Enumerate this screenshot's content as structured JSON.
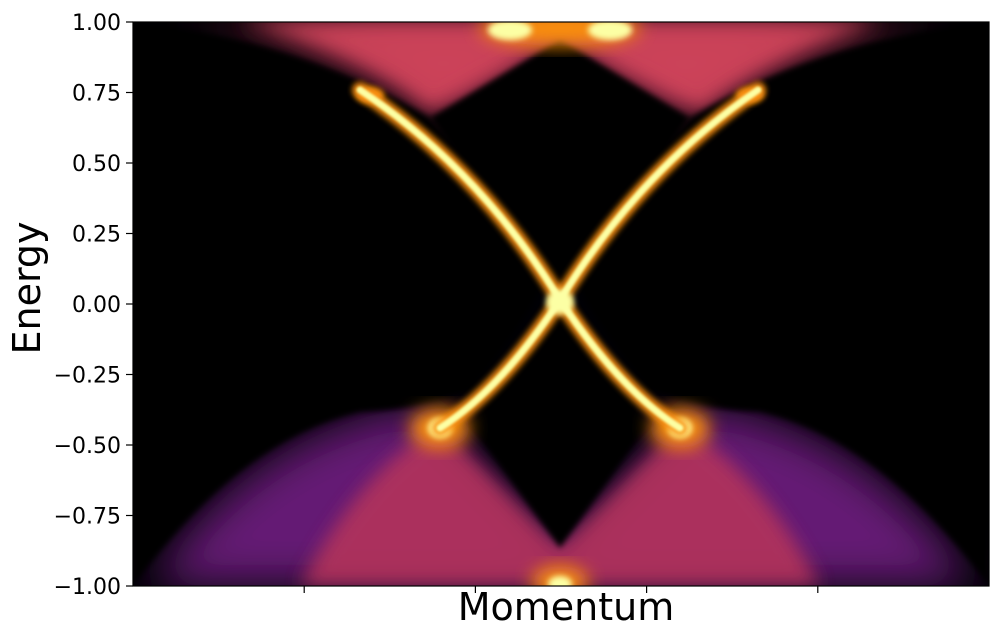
{
  "chart_data": {
    "type": "heatmap",
    "title": "",
    "xlabel": "Momentum",
    "ylabel": "Energy",
    "ylim": [
      -1.0,
      1.0
    ],
    "y_ticks": [
      -1.0,
      -0.75,
      -0.5,
      -0.25,
      0.0,
      0.25,
      0.5,
      0.75,
      1.0
    ],
    "y_tick_labels": [
      "−1.00",
      "−0.75",
      "−0.50",
      "−0.25",
      "0.00",
      "0.25",
      "0.50",
      "0.75",
      "1.00"
    ],
    "x_tick_labels": [],
    "x_tick_count": 4,
    "colormap": "inferno",
    "colors": {
      "background": "#000004",
      "low": "#420a68",
      "mid": "#bc3754",
      "high": "#f98e09",
      "peak": "#fcffa4"
    }
  }
}
